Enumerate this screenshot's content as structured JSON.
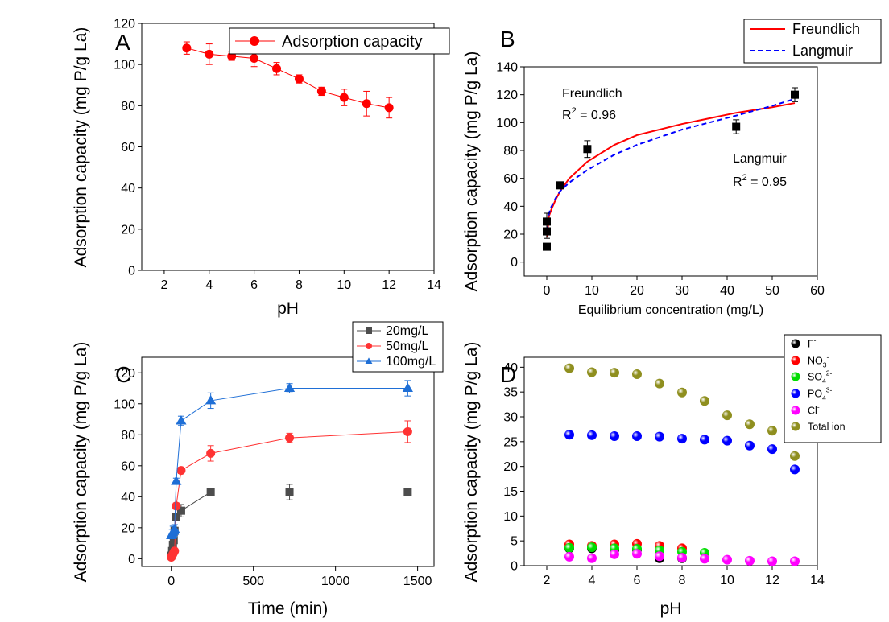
{
  "chart_data": [
    {
      "panel": "A",
      "type": "scatter",
      "xlabel": "pH",
      "ylabel": "Adsorption capacity (mg P/g La)",
      "xlim": [
        1,
        14
      ],
      "ylim": [
        0,
        120
      ],
      "xticks": [
        2,
        4,
        6,
        8,
        10,
        12,
        14
      ],
      "yticks": [
        0,
        20,
        40,
        60,
        80,
        100,
        120
      ],
      "legend_position": "top-right",
      "series": [
        {
          "name": "Adsorption capacity",
          "color": "#ff0000",
          "marker": "circle",
          "line": true,
          "x": [
            3,
            4,
            5,
            6,
            7,
            8,
            9,
            10,
            11,
            12
          ],
          "y": [
            108,
            105,
            104,
            103,
            98,
            93,
            87,
            84,
            81,
            79
          ],
          "err": [
            3,
            5,
            2,
            4,
            3,
            2,
            2,
            4,
            6,
            5
          ]
        }
      ]
    },
    {
      "panel": "B",
      "type": "scatter",
      "xlabel": "Equilibrium concentration (mg/L)",
      "ylabel": "Adsorption capacity (mg P/g La)",
      "xlim": [
        -5,
        60
      ],
      "ylim": [
        -10,
        140
      ],
      "xticks": [
        0,
        10,
        20,
        30,
        40,
        50,
        60
      ],
      "yticks": [
        0,
        20,
        40,
        60,
        80,
        100,
        120,
        140
      ],
      "legend_position": "top-right",
      "points": {
        "x": [
          0,
          0,
          0,
          3,
          9,
          42,
          55
        ],
        "y": [
          11,
          22,
          29,
          55,
          81,
          97,
          120
        ],
        "err": [
          2,
          5,
          6,
          2,
          6,
          5,
          5
        ],
        "color": "#000000",
        "marker": "square"
      },
      "fits": [
        {
          "name": "Freundlich",
          "color": "#ff0000",
          "style": "solid",
          "x": [
            0.05,
            0.5,
            1,
            2,
            3,
            5,
            9,
            15,
            20,
            30,
            42,
            50,
            55
          ],
          "y": [
            18,
            33,
            37.5,
            45,
            51,
            60,
            72,
            84,
            91,
            99,
            107,
            111,
            114
          ]
        },
        {
          "name": "Langmuir",
          "color": "#0000ff",
          "style": "dashed",
          "x": [
            0.05,
            0.5,
            1,
            2,
            3,
            5,
            9,
            15,
            20,
            30,
            42,
            50,
            55
          ],
          "y": [
            22,
            35,
            39.5,
            46,
            51,
            57,
            66,
            77,
            84,
            95,
            105,
            112,
            117
          ]
        }
      ],
      "annotations": [
        {
          "line1": "Freundlich",
          "line2_prefix": "R",
          "sup": "2",
          "line2_suffix": " = 0.96"
        },
        {
          "line1": "Langmuir",
          "line2_prefix": "R",
          "sup": "2",
          "line2_suffix": " = 0.95"
        }
      ]
    },
    {
      "panel": "C",
      "type": "line",
      "xlabel": "Time (min)",
      "ylabel": "Adsorption capacity (mg P/g La)",
      "xlim": [
        -180,
        1600
      ],
      "ylim": [
        -5,
        130
      ],
      "xticks": [
        0,
        500,
        1000,
        1500
      ],
      "yticks": [
        0,
        20,
        40,
        60,
        80,
        100,
        120
      ],
      "legend_position": "top-right",
      "series": [
        {
          "name": "20mg/L",
          "color": "#4d4d4d",
          "marker": "square",
          "x": [
            0,
            5,
            10,
            15,
            20,
            30,
            60,
            240,
            720,
            1440
          ],
          "y": [
            2,
            5,
            9,
            12,
            18,
            27,
            31,
            43,
            43,
            43
          ],
          "err": [
            0,
            0,
            0,
            0,
            0,
            2,
            4,
            2,
            5,
            1
          ]
        },
        {
          "name": "50mg/L",
          "color": "#ff3333",
          "marker": "circle",
          "x": [
            0,
            5,
            10,
            15,
            20,
            30,
            60,
            240,
            720,
            1440
          ],
          "y": [
            1,
            2,
            3,
            4,
            5,
            34,
            57,
            68,
            78,
            82
          ],
          "err": [
            0,
            0,
            0,
            0,
            0,
            2,
            2,
            5,
            3,
            7
          ]
        },
        {
          "name": "100mg/L",
          "color": "#1f6fd6",
          "marker": "triangle",
          "x": [
            0,
            5,
            10,
            15,
            20,
            30,
            60,
            240,
            720,
            1440
          ],
          "y": [
            15,
            16,
            17,
            18,
            19,
            50,
            89,
            102,
            110,
            110
          ],
          "err": [
            0,
            3,
            4,
            3,
            3,
            2,
            3,
            5,
            3,
            5
          ]
        }
      ]
    },
    {
      "panel": "D",
      "type": "scatter",
      "xlabel": "pH",
      "ylabel": "Adsorption capacity (mg P/g La)",
      "xlim": [
        1,
        14
      ],
      "ylim": [
        0,
        42
      ],
      "xticks": [
        2,
        4,
        6,
        8,
        10,
        12,
        14
      ],
      "yticks": [
        0,
        5,
        10,
        15,
        20,
        25,
        30,
        35,
        40
      ],
      "legend_position": "top-right",
      "series": [
        {
          "name": "F",
          "sup": "-",
          "color": "#000000",
          "x": [
            3,
            4,
            5,
            6,
            7,
            8
          ],
          "y": [
            3.5,
            3.5,
            3.2,
            3.2,
            1.5,
            1.5
          ]
        },
        {
          "name": "NO",
          "sub": "3",
          "sup": "-",
          "color": "#ff0000",
          "x": [
            3,
            4,
            5,
            6,
            7,
            8
          ],
          "y": [
            4.3,
            4.0,
            4.3,
            4.4,
            4.0,
            3.5
          ]
        },
        {
          "name": "SO",
          "sub": "4",
          "sup": "2-",
          "color": "#00dd00",
          "x": [
            3,
            4,
            5,
            6,
            7,
            8,
            9
          ],
          "y": [
            3.6,
            3.7,
            3.5,
            3.4,
            3.1,
            2.8,
            2.6
          ]
        },
        {
          "name": "PO",
          "sub": "4",
          "sup": "3-",
          "color": "#0000ff",
          "x": [
            3,
            4,
            5,
            6,
            7,
            8,
            9,
            10,
            11,
            12,
            13
          ],
          "y": [
            26.4,
            26.3,
            26.1,
            26.1,
            26.0,
            25.6,
            25.4,
            25.2,
            24.2,
            23.5,
            19.4
          ]
        },
        {
          "name": "Cl",
          "sup": "-",
          "color": "#ff00ff",
          "x": [
            3,
            4,
            5,
            6,
            7,
            8,
            9,
            10,
            11,
            12,
            13
          ],
          "y": [
            1.8,
            1.5,
            2.3,
            2.4,
            1.9,
            1.6,
            1.4,
            1.2,
            1.0,
            0.9,
            0.9
          ]
        },
        {
          "name": "Total ion",
          "color": "#8f8f1f",
          "x": [
            3,
            4,
            5,
            6,
            7,
            8,
            9,
            10,
            11,
            12,
            13
          ],
          "y": [
            39.8,
            39.0,
            38.9,
            38.6,
            36.7,
            34.9,
            33.2,
            30.3,
            28.5,
            27.2,
            22.1
          ]
        }
      ]
    }
  ]
}
